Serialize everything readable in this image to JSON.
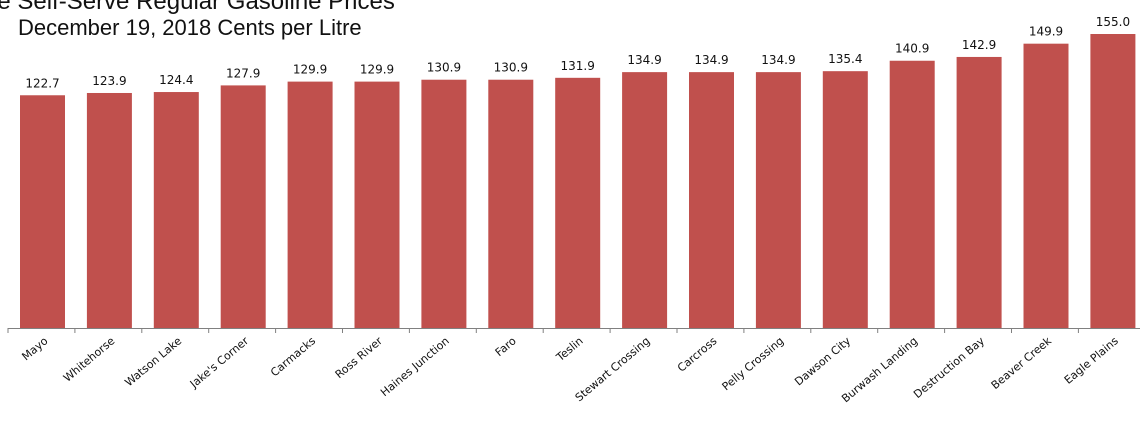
{
  "chart_data": {
    "type": "bar",
    "title": "ge Self-Serve Regular Gasoline Prices",
    "subtitle": "December 19, 2018 Cents per Litre",
    "categories": [
      "Mayo",
      "Whitehorse",
      "Watson Lake",
      "Jake's Corner",
      "Carmacks",
      "Ross River",
      "Haines Junction",
      "Faro",
      "Teslin",
      "Stewart Crossing",
      "Carcross",
      "Pelly Crossing",
      "Dawson City",
      "Burwash Landing",
      "Destruction Bay",
      "Beaver Creek",
      "Eagle Plains"
    ],
    "values": [
      122.7,
      123.9,
      124.4,
      127.9,
      129.9,
      129.9,
      130.9,
      130.9,
      131.9,
      134.9,
      134.9,
      134.9,
      135.4,
      140.9,
      142.9,
      149.9,
      155.0
    ],
    "value_labels": [
      "122.7",
      "123.9",
      "124.4",
      "127.9",
      "129.9",
      "129.9",
      "130.9",
      "130.9",
      "131.9",
      "134.9",
      "134.9",
      "134.9",
      "135.4",
      "140.9",
      "142.9",
      "149.9",
      "155.0"
    ],
    "ylim": [
      0,
      155
    ],
    "grid": false,
    "legend": false,
    "bar_color": "#c0504d",
    "axis_color": "#808080"
  }
}
